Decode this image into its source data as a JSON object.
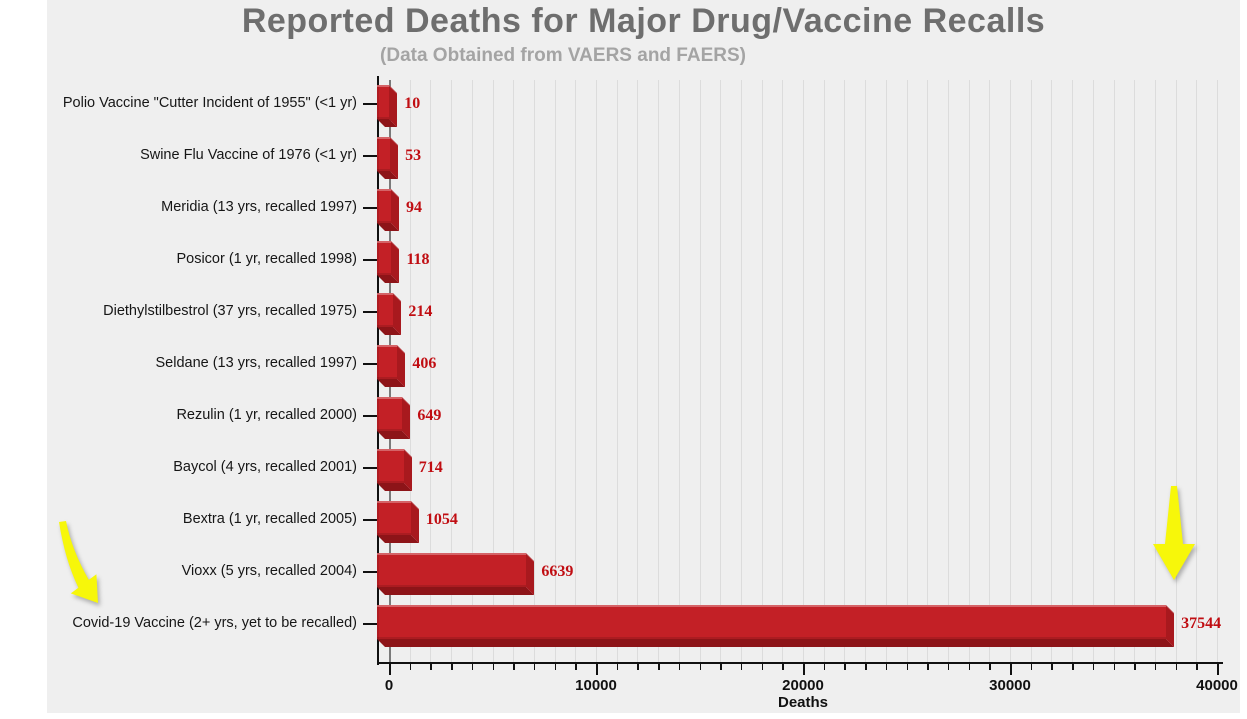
{
  "page": {
    "background": "#ffffff",
    "panel_background": "#efefef"
  },
  "chart_data": {
    "type": "bar",
    "orientation": "horizontal",
    "title": "Reported Deaths for Major Drug/Vaccine Recalls",
    "subtitle": "(Data Obtained from VAERS and FAERS)",
    "xlabel": "Deaths",
    "xlim": [
      0,
      40000
    ],
    "x_major_ticks": [
      0,
      10000,
      20000,
      30000,
      40000
    ],
    "x_major_tick_labels": [
      "0",
      "10000",
      "20000",
      "30000",
      "40000"
    ],
    "x_minor_tick_step": 1000,
    "grid": "vertical light-gray gridlines every 1000, darker line at 0",
    "legend": "none",
    "categories": [
      "Polio Vaccine \"Cutter Incident of 1955\" (<1 yr)",
      "Swine Flu Vaccine of 1976 (<1 yr)",
      "Meridia (13 yrs, recalled 1997)",
      "Posicor (1 yr, recalled 1998)",
      "Diethylstilbestrol (37 yrs, recalled 1975)",
      "Seldane (13 yrs, recalled 1997)",
      "Rezulin (1 yr, recalled 2000)",
      "Baycol (4 yrs, recalled 2001)",
      "Bextra (1 yr, recalled 2005)",
      "Vioxx (5 yrs, recalled 2004)",
      "Covid-19 Vaccine (2+ yrs, yet to be recalled)"
    ],
    "values": [
      10,
      53,
      94,
      118,
      214,
      406,
      649,
      714,
      1054,
      6639,
      37544
    ],
    "value_labels": [
      "10",
      "53",
      "94",
      "118",
      "214",
      "406",
      "649",
      "714",
      "1054",
      "6639",
      "37544"
    ],
    "bar_style": "3D beveled red bars",
    "colors": {
      "bar_face": "#c32026",
      "bar_cap": "#a8191e",
      "bar_bevel": "#8d1418",
      "value_text": "#c00d12",
      "title_text": "#6e6e6e",
      "subtitle_text": "#a4a4a4",
      "axis_text": "#111111",
      "grid_line": "#dcdcdc",
      "zero_line": "#7a7a7a",
      "arrow_fill": "#f7f70a"
    },
    "annotations": [
      {
        "name": "left-arrow",
        "shape": "yellow curved arrow pointing down-right at the Covid-19 Vaccine row label"
      },
      {
        "name": "right-arrow",
        "shape": "yellow straight arrow pointing down at the end of the Covid-19 Vaccine bar (37544)"
      }
    ]
  }
}
